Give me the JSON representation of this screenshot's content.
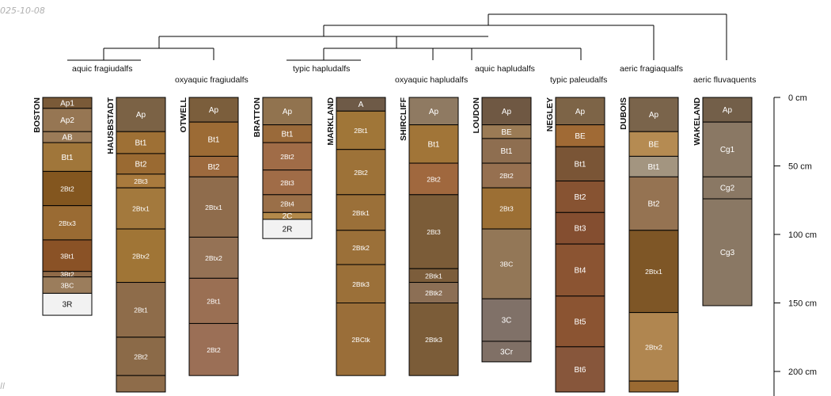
{
  "header": {
    "date_fragment": "025-10-08",
    "footer_fragment": "ll"
  },
  "dendrogram_color": "#000000",
  "depth_axis": {
    "unit": "cm",
    "max_depth": 215,
    "ticks": [
      {
        "depth": 0,
        "label": "0 cm"
      },
      {
        "depth": 50,
        "label": "50 cm"
      },
      {
        "depth": 100,
        "label": "100 cm"
      },
      {
        "depth": 150,
        "label": "150 cm"
      },
      {
        "depth": 200,
        "label": "200 cm"
      }
    ]
  },
  "profiles": [
    {
      "name": "BOSTON",
      "taxon": "aquic fragiudalfs",
      "horizons": [
        {
          "name": "Ap1",
          "top": 0,
          "bottom": 8,
          "color": "#7a5a38"
        },
        {
          "name": "Ap2",
          "top": 8,
          "bottom": 25,
          "color": "#967653"
        },
        {
          "name": "AB",
          "top": 25,
          "bottom": 33,
          "color": "#9b7b58"
        },
        {
          "name": "Bt1",
          "top": 33,
          "bottom": 54,
          "color": "#a0763a"
        },
        {
          "name": "2Bt2",
          "top": 54,
          "bottom": 79,
          "color": "#83561f"
        },
        {
          "name": "2Btx3",
          "top": 79,
          "bottom": 104,
          "color": "#9a6b33"
        },
        {
          "name": "3Bt1",
          "top": 104,
          "bottom": 127,
          "color": "#8a5226"
        },
        {
          "name": "3Bt2",
          "top": 127,
          "bottom": 131,
          "color": "#8f6a48"
        },
        {
          "name": "3BC",
          "top": 131,
          "bottom": 143,
          "color": "#9b7d5c"
        },
        {
          "name": "3R",
          "top": 143,
          "bottom": 159,
          "color": "#f2f2f2"
        }
      ]
    },
    {
      "name": "HAUSBSTADT",
      "taxon": "",
      "horizons": [
        {
          "name": "Ap",
          "top": 0,
          "bottom": 25,
          "color": "#7b6245"
        },
        {
          "name": "Bt1",
          "top": 25,
          "bottom": 41,
          "color": "#9e7035"
        },
        {
          "name": "Bt2",
          "top": 41,
          "bottom": 56,
          "color": "#9a6a32"
        },
        {
          "name": "2Bt3",
          "top": 56,
          "bottom": 66,
          "color": "#a97a3d"
        },
        {
          "name": "2Btx1",
          "top": 66,
          "bottom": 96,
          "color": "#a3793d"
        },
        {
          "name": "2Btx2",
          "top": 96,
          "bottom": 135,
          "color": "#a07536"
        },
        {
          "name": "2Bt1",
          "top": 135,
          "bottom": 175,
          "color": "#8e6c4a"
        },
        {
          "name": "2Bt2",
          "top": 175,
          "bottom": 203,
          "color": "#8b6a48"
        },
        {
          "name": "",
          "top": 203,
          "bottom": 215,
          "color": "#8e6c4a"
        }
      ]
    },
    {
      "name": "OTWELL",
      "taxon": "oxyaquic fragiudalfs",
      "horizons": [
        {
          "name": "Ap",
          "top": 0,
          "bottom": 18,
          "color": "#7b5e3c"
        },
        {
          "name": "Bt1",
          "top": 18,
          "bottom": 43,
          "color": "#9c6b35"
        },
        {
          "name": "Bt2",
          "top": 43,
          "bottom": 58,
          "color": "#9d6a3e"
        },
        {
          "name": "2Btx1",
          "top": 58,
          "bottom": 102,
          "color": "#8f6c4c"
        },
        {
          "name": "2Btx2",
          "top": 102,
          "bottom": 132,
          "color": "#957255"
        },
        {
          "name": "2Bt1",
          "top": 132,
          "bottom": 165,
          "color": "#9a6f53"
        },
        {
          "name": "2Bt2",
          "top": 165,
          "bottom": 203,
          "color": "#9b6f56"
        }
      ]
    },
    {
      "name": "BRATTON",
      "taxon": "typic hapludalfs",
      "horizons": [
        {
          "name": "Ap",
          "top": 0,
          "bottom": 20,
          "color": "#91734f"
        },
        {
          "name": "Bt1",
          "top": 20,
          "bottom": 33,
          "color": "#9a6a3a"
        },
        {
          "name": "2Bt2",
          "top": 33,
          "bottom": 53,
          "color": "#a06c47"
        },
        {
          "name": "2Bt3",
          "top": 53,
          "bottom": 71,
          "color": "#a06c47"
        },
        {
          "name": "2Bt4",
          "top": 71,
          "bottom": 84,
          "color": "#9a6f48"
        },
        {
          "name": "2C",
          "top": 84,
          "bottom": 89,
          "color": "#b3894a"
        },
        {
          "name": "2R",
          "top": 89,
          "bottom": 103,
          "color": "#f2f2f2"
        }
      ]
    },
    {
      "name": "MARKLAND",
      "taxon": "",
      "horizons": [
        {
          "name": "A",
          "top": 0,
          "bottom": 10,
          "color": "#6e5a47"
        },
        {
          "name": "2Bt1",
          "top": 10,
          "bottom": 38,
          "color": "#a07638"
        },
        {
          "name": "2Bt2",
          "top": 38,
          "bottom": 71,
          "color": "#9d7238"
        },
        {
          "name": "2Btk1",
          "top": 71,
          "bottom": 97,
          "color": "#9b7039"
        },
        {
          "name": "2Btk2",
          "top": 97,
          "bottom": 122,
          "color": "#9b7039"
        },
        {
          "name": "2Btk3",
          "top": 122,
          "bottom": 150,
          "color": "#9b7039"
        },
        {
          "name": "2BCtk",
          "top": 150,
          "bottom": 203,
          "color": "#9a6e39"
        }
      ]
    },
    {
      "name": "SHIRCLIFF",
      "taxon": "oxyaquic hapludalfs",
      "horizons": [
        {
          "name": "Ap",
          "top": 0,
          "bottom": 20,
          "color": "#8f7a62"
        },
        {
          "name": "Bt1",
          "top": 20,
          "bottom": 48,
          "color": "#a17538"
        },
        {
          "name": "2Bt2",
          "top": 48,
          "bottom": 71,
          "color": "#a0683e"
        },
        {
          "name": "2Bt3",
          "top": 71,
          "bottom": 125,
          "color": "#7b5c38"
        },
        {
          "name": "2Btk1",
          "top": 125,
          "bottom": 135,
          "color": "#7c5d3b"
        },
        {
          "name": "2Btk2",
          "top": 135,
          "bottom": 150,
          "color": "#8c6f55"
        },
        {
          "name": "2Btk3",
          "top": 150,
          "bottom": 203,
          "color": "#7b5c38"
        }
      ]
    },
    {
      "name": "LOUDON",
      "taxon": "aquic hapludalfs",
      "horizons": [
        {
          "name": "Ap",
          "top": 0,
          "bottom": 20,
          "color": "#6f5843"
        },
        {
          "name": "BE",
          "top": 20,
          "bottom": 30,
          "color": "#9b7b55"
        },
        {
          "name": "Bt1",
          "top": 30,
          "bottom": 48,
          "color": "#8e6e50"
        },
        {
          "name": "2Bt2",
          "top": 48,
          "bottom": 66,
          "color": "#967050"
        },
        {
          "name": "2Bt3",
          "top": 66,
          "bottom": 96,
          "color": "#9c6f34"
        },
        {
          "name": "3BC",
          "top": 96,
          "bottom": 147,
          "color": "#937757"
        },
        {
          "name": "3C",
          "top": 147,
          "bottom": 178,
          "color": "#807168"
        },
        {
          "name": "3Cr",
          "top": 178,
          "bottom": 193,
          "color": "#807066"
        }
      ]
    },
    {
      "name": "NEGLEY",
      "taxon": "typic paleudalfs",
      "horizons": [
        {
          "name": "Ap",
          "top": 0,
          "bottom": 20,
          "color": "#7d6447"
        },
        {
          "name": "BE",
          "top": 20,
          "bottom": 36,
          "color": "#a06a35"
        },
        {
          "name": "Bt1",
          "top": 36,
          "bottom": 61,
          "color": "#7a5536"
        },
        {
          "name": "Bt2",
          "top": 61,
          "bottom": 84,
          "color": "#875332"
        },
        {
          "name": "Bt3",
          "top": 84,
          "bottom": 107,
          "color": "#844e30"
        },
        {
          "name": "Bt4",
          "top": 107,
          "bottom": 145,
          "color": "#8b5432"
        },
        {
          "name": "Bt5",
          "top": 145,
          "bottom": 182,
          "color": "#8b5432"
        },
        {
          "name": "Bt6",
          "top": 182,
          "bottom": 215,
          "color": "#87563b"
        }
      ]
    },
    {
      "name": "DUBOIS",
      "taxon": "aeric fragiaqualfs",
      "horizons": [
        {
          "name": "Ap",
          "top": 0,
          "bottom": 25,
          "color": "#7a644b"
        },
        {
          "name": "BE",
          "top": 25,
          "bottom": 43,
          "color": "#b58b52"
        },
        {
          "name": "Bt1",
          "top": 43,
          "bottom": 58,
          "color": "#a39580"
        },
        {
          "name": "Bt2",
          "top": 58,
          "bottom": 97,
          "color": "#957352"
        },
        {
          "name": "2Btx1",
          "top": 97,
          "bottom": 157,
          "color": "#7e5626"
        },
        {
          "name": "2Btx2",
          "top": 157,
          "bottom": 207,
          "color": "#b08650"
        },
        {
          "name": "",
          "top": 207,
          "bottom": 215,
          "color": "#9a6a32"
        }
      ]
    },
    {
      "name": "WAKELAND",
      "taxon": "aeric fluvaquents",
      "horizons": [
        {
          "name": "Ap",
          "top": 0,
          "bottom": 18,
          "color": "#735f49"
        },
        {
          "name": "Cg1",
          "top": 18,
          "bottom": 58,
          "color": "#8a7864"
        },
        {
          "name": "Cg2",
          "top": 58,
          "bottom": 74,
          "color": "#8a7864"
        },
        {
          "name": "Cg3",
          "top": 74,
          "bottom": 152,
          "color": "#8a7864"
        }
      ]
    }
  ]
}
